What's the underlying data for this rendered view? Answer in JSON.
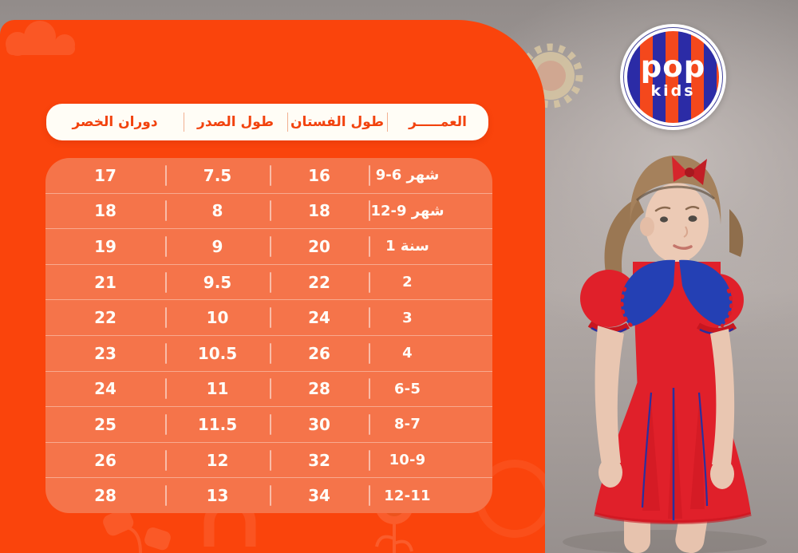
{
  "brand": {
    "logo_line1": "pop",
    "logo_line2": "kids",
    "stripe_blue": "#2b2ba6",
    "stripe_orange": "#f4481c"
  },
  "colors": {
    "panel_orange": "#fa440c",
    "table_orange": "#f5744a",
    "header_pill_bg": "#fffdf6",
    "header_text": "#f2430e",
    "cell_text": "#fffdf8",
    "photo_background_gray": "#a8a09d",
    "dress_red": "#e0202a",
    "collar_blue": "#2440b4",
    "bow_red": "#d6252c"
  },
  "decorations": [
    "cloud-icon",
    "sun-icon",
    "flower-icon",
    "plant-icon",
    "arch-icon",
    "beige-sun-icon"
  ],
  "table": {
    "columns": [
      {
        "key": "waist",
        "label": "دوران الخصر"
      },
      {
        "key": "chest",
        "label": "طول الصدر"
      },
      {
        "key": "dress",
        "label": "طول الفستان"
      },
      {
        "key": "age",
        "label": "العمـــــر"
      }
    ],
    "rows": [
      {
        "age": "9-6 شهر",
        "dress": "16",
        "chest": "7.5",
        "waist": "17"
      },
      {
        "age": "12-9 شهر",
        "dress": "18",
        "chest": "8",
        "waist": "18"
      },
      {
        "age": "1 سنة",
        "dress": "20",
        "chest": "9",
        "waist": "19"
      },
      {
        "age": "2",
        "dress": "22",
        "chest": "9.5",
        "waist": "21"
      },
      {
        "age": "3",
        "dress": "24",
        "chest": "10",
        "waist": "22"
      },
      {
        "age": "4",
        "dress": "26",
        "chest": "10.5",
        "waist": "23"
      },
      {
        "age": "6-5",
        "dress": "28",
        "chest": "11",
        "waist": "24"
      },
      {
        "age": "8-7",
        "dress": "30",
        "chest": "11.5",
        "waist": "25"
      },
      {
        "age": "10-9",
        "dress": "32",
        "chest": "12",
        "waist": "26"
      },
      {
        "age": "12-11",
        "dress": "34",
        "chest": "13",
        "waist": "28"
      }
    ]
  }
}
